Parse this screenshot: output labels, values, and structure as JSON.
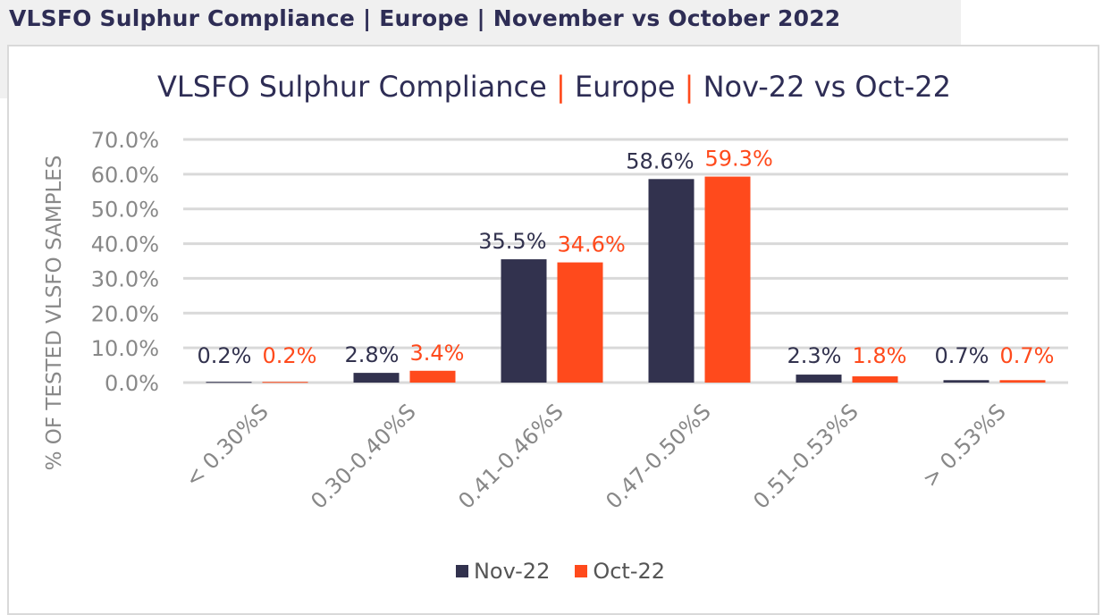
{
  "header": "VLSFO Sulphur Compliance | Europe | November vs October 2022",
  "chart_data": {
    "type": "bar",
    "title_parts": [
      "VLSFO Sulphur Compliance",
      "|",
      "Europe",
      "|",
      "Nov-22 vs Oct-22"
    ],
    "ylabel": "% OF TESTED VLSFO SAMPLES",
    "xlabel": "",
    "ylim": [
      0,
      70
    ],
    "yticks": [
      "0.0%",
      "10.0%",
      "20.0%",
      "30.0%",
      "40.0%",
      "50.0%",
      "60.0%",
      "70.0%"
    ],
    "categories": [
      "< 0.30%S",
      "0.30-0.40%S",
      "0.41-0.46%S",
      "0.47-0.50%S",
      "0.51-0.53%S",
      "> 0.53%S"
    ],
    "series": [
      {
        "name": "Nov-22",
        "color": "#32324e",
        "values": [
          0.2,
          2.8,
          35.5,
          58.6,
          2.3,
          0.7
        ],
        "labels": [
          "0.2%",
          "2.8%",
          "35.5%",
          "58.6%",
          "2.3%",
          "0.7%"
        ]
      },
      {
        "name": "Oct-22",
        "color": "#ff4a1c",
        "values": [
          0.2,
          3.4,
          34.6,
          59.3,
          1.8,
          0.7
        ],
        "labels": [
          "0.2%",
          "3.4%",
          "34.6%",
          "59.3%",
          "1.8%",
          "0.7%"
        ]
      }
    ],
    "grid": true,
    "legend_position": "bottom"
  }
}
